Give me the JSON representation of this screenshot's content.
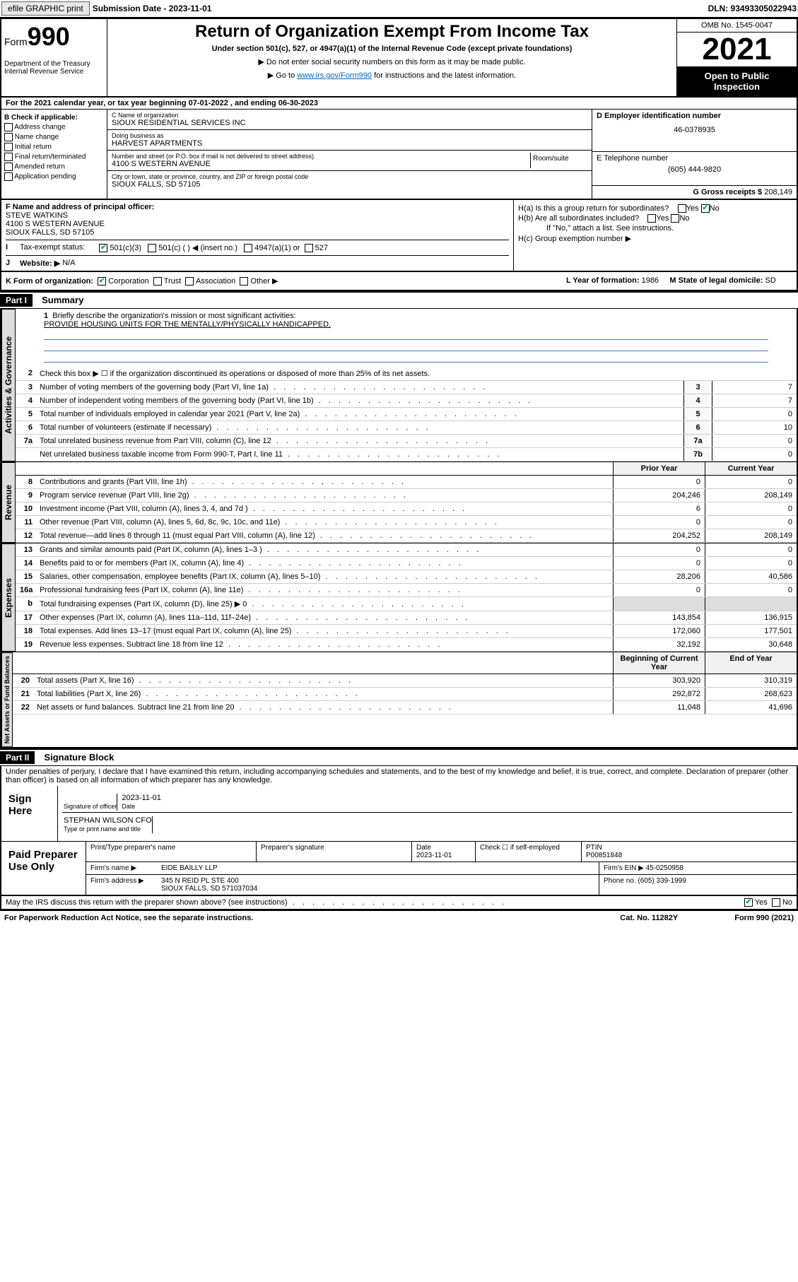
{
  "topbar": {
    "efile": "efile GRAPHIC print",
    "sub_label": "Submission Date - 2023-11-01",
    "dln": "DLN: 93493305022943"
  },
  "header": {
    "form": "Form",
    "form_num": "990",
    "title": "Return of Organization Exempt From Income Tax",
    "subtitle": "Under section 501(c), 527, or 4947(a)(1) of the Internal Revenue Code (except private foundations)",
    "note1": "▶ Do not enter social security numbers on this form as it may be made public.",
    "note2_pre": "▶ Go to ",
    "note2_link": "www.irs.gov/Form990",
    "note2_post": " for instructions and the latest information.",
    "dept": "Department of the Treasury Internal Revenue Service",
    "omb": "OMB No. 1545-0047",
    "year": "2021",
    "open": "Open to Public Inspection"
  },
  "A": "For the 2021 calendar year, or tax year beginning 07-01-2022 , and ending 06-30-2023",
  "B": {
    "title": "B Check if applicable:",
    "opts": [
      "Address change",
      "Name change",
      "Initial return",
      "Final return/terminated",
      "Amended return",
      "Application pending"
    ]
  },
  "C": {
    "name_lbl": "C Name of organization",
    "name": "SIOUX RESIDENTIAL SERVICES INC",
    "dba_lbl": "Doing business as",
    "dba": "HARVEST APARTMENTS",
    "addr_lbl": "Number and street (or P.O. box if mail is not delivered to street address)",
    "room_lbl": "Room/suite",
    "addr": "4100 S WESTERN AVENUE",
    "city_lbl": "City or town, state or province, country, and ZIP or foreign postal code",
    "city": "SIOUX FALLS, SD  57105"
  },
  "D": {
    "lbl": "D Employer identification number",
    "val": "46-0378935"
  },
  "E": {
    "lbl": "E Telephone number",
    "val": "(605) 444-9820"
  },
  "G": {
    "lbl": "G Gross receipts $",
    "val": "208,149"
  },
  "F": {
    "lbl": "F Name and address of principal officer:",
    "name": "STEVE WATKINS",
    "addr1": "4100 S WESTERN AVENUE",
    "addr2": "SIOUX FALLS, SD  57105"
  },
  "H": {
    "a": "H(a) Is this a group return for subordinates?",
    "b": "H(b) Are all subordinates included?",
    "list": "If \"No,\" attach a list. See instructions.",
    "c": "H(c) Group exemption number ▶"
  },
  "I": {
    "lbl": "Tax-exempt status:",
    "opts": [
      "501(c)(3)",
      "501(c) (   ) ◀ (insert no.)",
      "4947(a)(1) or",
      "527"
    ]
  },
  "J": {
    "lbl": "Website: ▶",
    "val": "N/A"
  },
  "K": {
    "lbl": "K Form of organization:",
    "opts": [
      "Corporation",
      "Trust",
      "Association",
      "Other ▶"
    ]
  },
  "L": {
    "lbl": "L Year of formation:",
    "val": "1986"
  },
  "M": {
    "lbl": "M State of legal domicile:",
    "val": "SD"
  },
  "partI": {
    "hdr": "Part I",
    "title": "Summary",
    "l1_lbl": "Briefly describe the organization's mission or most significant activities:",
    "l1_val": "PROVIDE HOUSING UNITS FOR THE MENTALLY/PHYSICALLY HANDICAPPED.",
    "l2": "Check this box ▶ ☐ if the organization discontinued its operations or disposed of more than 25% of its net assets.",
    "rows_gov": [
      {
        "n": "3",
        "t": "Number of voting members of the governing body (Part VI, line 1a)",
        "b": "3",
        "v": "7"
      },
      {
        "n": "4",
        "t": "Number of independent voting members of the governing body (Part VI, line 1b)",
        "b": "4",
        "v": "7"
      },
      {
        "n": "5",
        "t": "Total number of individuals employed in calendar year 2021 (Part V, line 2a)",
        "b": "5",
        "v": "0"
      },
      {
        "n": "6",
        "t": "Total number of volunteers (estimate if necessary)",
        "b": "6",
        "v": "10"
      },
      {
        "n": "7a",
        "t": "Total unrelated business revenue from Part VIII, column (C), line 12",
        "b": "7a",
        "v": "0"
      },
      {
        "n": "",
        "t": "Net unrelated business taxable income from Form 990-T, Part I, line 11",
        "b": "7b",
        "v": "0"
      }
    ],
    "col_prior": "Prior Year",
    "col_curr": "Current Year",
    "rows_rev": [
      {
        "n": "8",
        "t": "Contributions and grants (Part VIII, line 1h)",
        "p": "0",
        "c": "0"
      },
      {
        "n": "9",
        "t": "Program service revenue (Part VIII, line 2g)",
        "p": "204,246",
        "c": "208,149"
      },
      {
        "n": "10",
        "t": "Investment income (Part VIII, column (A), lines 3, 4, and 7d )",
        "p": "6",
        "c": "0"
      },
      {
        "n": "11",
        "t": "Other revenue (Part VIII, column (A), lines 5, 6d, 8c, 9c, 10c, and 11e)",
        "p": "0",
        "c": "0"
      },
      {
        "n": "12",
        "t": "Total revenue—add lines 8 through 11 (must equal Part VIII, column (A), line 12)",
        "p": "204,252",
        "c": "208,149"
      }
    ],
    "rows_exp": [
      {
        "n": "13",
        "t": "Grants and similar amounts paid (Part IX, column (A), lines 1–3 )",
        "p": "0",
        "c": "0"
      },
      {
        "n": "14",
        "t": "Benefits paid to or for members (Part IX, column (A), line 4)",
        "p": "0",
        "c": "0"
      },
      {
        "n": "15",
        "t": "Salaries, other compensation, employee benefits (Part IX, column (A), lines 5–10)",
        "p": "28,206",
        "c": "40,586"
      },
      {
        "n": "16a",
        "t": "Professional fundraising fees (Part IX, column (A), line 11e)",
        "p": "0",
        "c": "0"
      },
      {
        "n": "b",
        "t": "Total fundraising expenses (Part IX, column (D), line 25) ▶ 0",
        "p": "",
        "c": ""
      },
      {
        "n": "17",
        "t": "Other expenses (Part IX, column (A), lines 11a–11d, 11f–24e)",
        "p": "143,854",
        "c": "136,915"
      },
      {
        "n": "18",
        "t": "Total expenses. Add lines 13–17 (must equal Part IX, column (A), line 25)",
        "p": "172,060",
        "c": "177,501"
      },
      {
        "n": "19",
        "t": "Revenue less expenses. Subtract line 18 from line 12",
        "p": "32,192",
        "c": "30,648"
      }
    ],
    "col_beg": "Beginning of Current Year",
    "col_end": "End of Year",
    "rows_net": [
      {
        "n": "20",
        "t": "Total assets (Part X, line 16)",
        "p": "303,920",
        "c": "310,319"
      },
      {
        "n": "21",
        "t": "Total liabilities (Part X, line 26)",
        "p": "292,872",
        "c": "268,623"
      },
      {
        "n": "22",
        "t": "Net assets or fund balances. Subtract line 21 from line 20",
        "p": "11,048",
        "c": "41,696"
      }
    ],
    "vtabs": [
      "Activities & Governance",
      "Revenue",
      "Expenses",
      "Net Assets or Fund Balances"
    ]
  },
  "partII": {
    "hdr": "Part II",
    "title": "Signature Block",
    "pen": "Under penalties of perjury, I declare that I have examined this return, including accompanying schedules and statements, and to the best of my knowledge and belief, it is true, correct, and complete. Declaration of preparer (other than officer) is based on all information of which preparer has any knowledge.",
    "sign_here": "Sign Here",
    "sig_lbl": "Signature of officer",
    "date_lbl": "Date",
    "date": "2023-11-01",
    "name": "STEPHAN WILSON CFO",
    "name_lbl": "Type or print name and title",
    "paid": "Paid Preparer Use Only",
    "prep_hdrs": [
      "Print/Type preparer's name",
      "Preparer's signature",
      "Date",
      "",
      "PTIN"
    ],
    "prep_date": "2023-11-01",
    "prep_check": "Check ☐ if self-employed",
    "ptin": "P00851848",
    "firm_lbl": "Firm's name   ▶",
    "firm": "EIDE BAILLY LLP",
    "ein_lbl": "Firm's EIN ▶",
    "ein": "45-0250958",
    "faddr_lbl": "Firm's address ▶",
    "faddr1": "345 N REID PL STE 400",
    "faddr2": "SIOUX FALLS, SD 571037034",
    "phone_lbl": "Phone no.",
    "phone": "(605) 339-1999",
    "may": "May the IRS discuss this return with the preparer shown above? (see instructions)",
    "yes": "Yes",
    "no": "No"
  },
  "footer": {
    "pra": "For Paperwork Reduction Act Notice, see the separate instructions.",
    "cat": "Cat. No. 11282Y",
    "form": "Form 990 (2021)"
  },
  "colors": {
    "link": "#0066cc",
    "check": "#00aa55",
    "uline": "#4a7bb5"
  }
}
